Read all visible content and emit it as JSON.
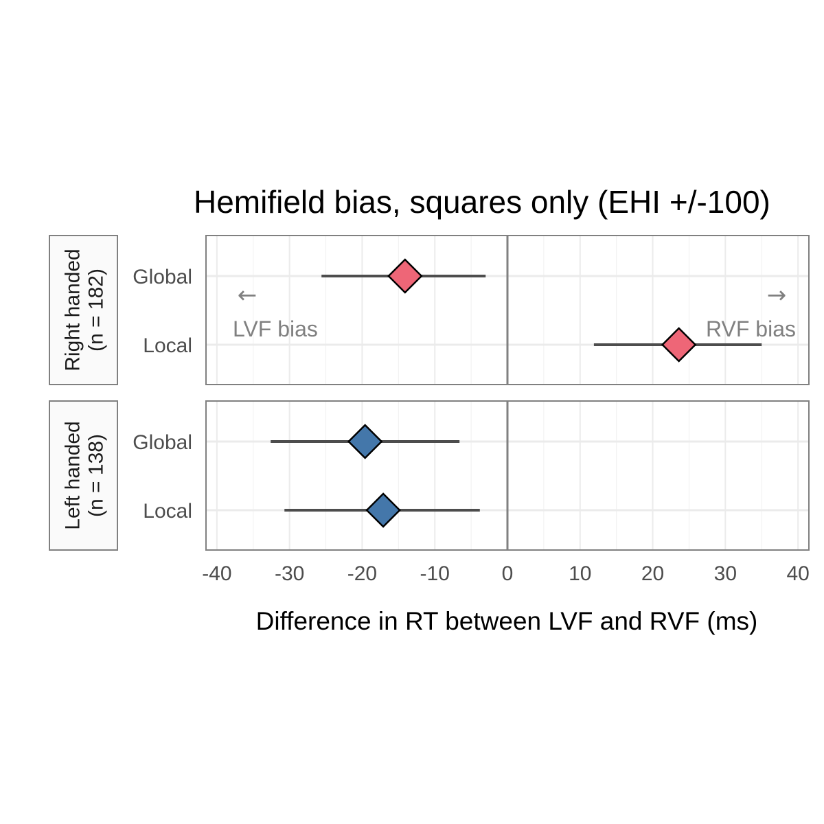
{
  "chart_data": {
    "type": "scatter",
    "title": "Hemifield bias, squares only (EHI +/-100)",
    "xlabel": "Difference in RT between LVF and RVF (ms)",
    "ylabel": "",
    "xlim": [
      -41.5,
      41.5
    ],
    "xticks": [
      -40,
      -30,
      -20,
      -10,
      0,
      10,
      20,
      30,
      40
    ],
    "xtick_labels": [
      "-40",
      "-30",
      "-20",
      "-10",
      "0",
      "10",
      "20",
      "30",
      "40"
    ],
    "grid": true,
    "categories": [
      "Global",
      "Local"
    ],
    "annotations": {
      "left_arrow": "←",
      "left_label": "LVF bias",
      "right_arrow": "→",
      "right_label": "RVF bias"
    },
    "panels": [
      {
        "strip_line1": "Right handed",
        "strip_line2": "(n = 182)",
        "color": "#EE6677",
        "show_annotations": true,
        "points": [
          {
            "category": "Global",
            "estimate": -14.1,
            "lower": -25.6,
            "upper": -3.0
          },
          {
            "category": "Local",
            "estimate": 23.6,
            "lower": 11.9,
            "upper": 35.0
          }
        ]
      },
      {
        "strip_line1": "Left handed",
        "strip_line2": "(n = 138)",
        "color": "#4477AA",
        "show_annotations": false,
        "points": [
          {
            "category": "Global",
            "estimate": -19.6,
            "lower": -32.6,
            "upper": -6.6
          },
          {
            "category": "Local",
            "estimate": -17.1,
            "lower": -30.7,
            "upper": -3.8
          }
        ]
      }
    ]
  }
}
